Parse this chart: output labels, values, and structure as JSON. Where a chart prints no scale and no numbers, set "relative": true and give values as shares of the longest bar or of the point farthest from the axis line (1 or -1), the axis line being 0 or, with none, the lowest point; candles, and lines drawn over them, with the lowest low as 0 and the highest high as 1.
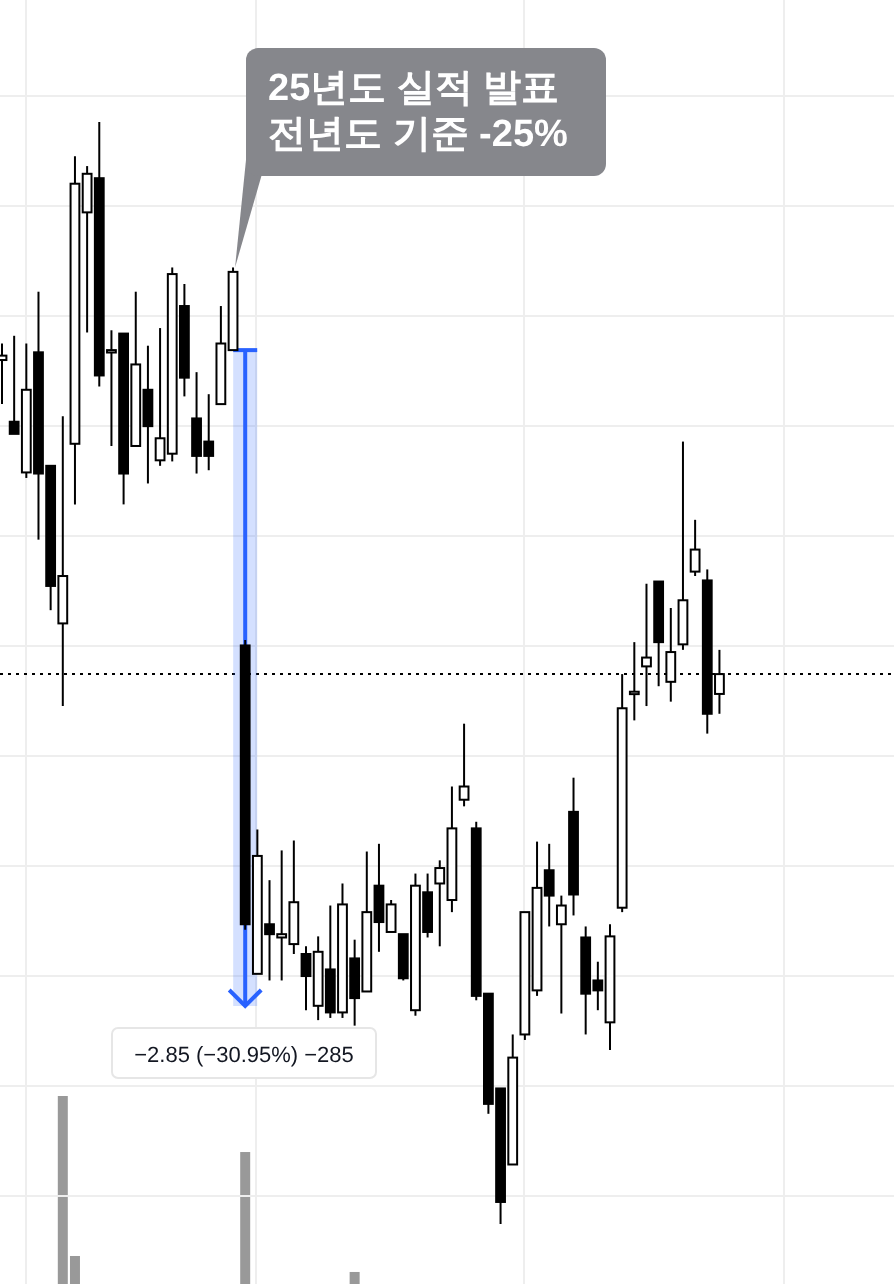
{
  "chart_data": [
    {
      "type": "candlestick",
      "relative": true,
      "grid": true,
      "categories": [
        null,
        null,
        null,
        null,
        null,
        null,
        null,
        null,
        null,
        null,
        null,
        null,
        null,
        null,
        null,
        null,
        null,
        null,
        null,
        null,
        null,
        null,
        null,
        null,
        null,
        null,
        null,
        null,
        null,
        null,
        null,
        null,
        null,
        null,
        null,
        null,
        null,
        null,
        null,
        null,
        null,
        null,
        null,
        null,
        null,
        null,
        null,
        null,
        null,
        null,
        null,
        null,
        null,
        null,
        null,
        null,
        null,
        null,
        null,
        null
      ],
      "ohlc": [
        [
          0.784,
          0.799,
          0.744,
          0.788
        ],
        [
          0.728,
          0.806,
          0.717,
          0.717
        ],
        [
          0.682,
          0.799,
          0.677,
          0.757
        ],
        [
          0.791,
          0.846,
          0.621,
          0.681
        ],
        [
          0.688,
          0.688,
          0.557,
          0.579
        ],
        [
          0.545,
          0.733,
          0.47,
          0.588
        ],
        [
          0.708,
          0.969,
          0.653,
          0.944
        ],
        [
          0.918,
          0.96,
          0.809,
          0.953
        ],
        [
          0.949,
          1.0,
          0.76,
          0.77
        ],
        [
          0.793,
          0.811,
          0.706,
          0.793
        ],
        [
          0.808,
          0.808,
          0.653,
          0.681
        ],
        [
          0.706,
          0.846,
          0.706,
          0.78
        ],
        [
          0.757,
          0.797,
          0.672,
          0.724
        ],
        [
          0.693,
          0.813,
          0.688,
          0.713
        ],
        [
          0.699,
          0.868,
          0.692,
          0.862
        ],
        [
          0.833,
          0.853,
          0.751,
          0.768
        ],
        [
          0.731,
          0.773,
          0.681,
          0.697
        ],
        [
          0.71,
          0.753,
          0.684,
          0.697
        ],
        [
          0.744,
          0.833,
          0.744,
          0.799
        ],
        [
          0.793,
          0.868,
          0.793,
          0.864
        ],
        [
          0.525,
          0.53,
          0.267,
          0.272
        ],
        [
          0.227,
          0.358,
          0.227,
          0.334
        ],
        [
          0.272,
          0.312,
          0.221,
          0.263
        ],
        [
          0.26,
          0.339,
          0.221,
          0.263
        ],
        [
          0.254,
          0.348,
          0.245,
          0.292
        ],
        [
          0.245,
          0.252,
          0.194,
          0.225
        ],
        [
          0.198,
          0.261,
          0.185,
          0.247
        ],
        [
          0.231,
          0.289,
          0.187,
          0.192
        ],
        [
          0.192,
          0.309,
          0.187,
          0.29
        ],
        [
          0.241,
          0.258,
          0.18,
          0.205
        ],
        [
          0.211,
          0.338,
          0.211,
          0.283
        ],
        [
          0.307,
          0.345,
          0.247,
          0.274
        ],
        [
          0.265,
          0.294,
          0.265,
          0.29
        ],
        [
          0.263,
          0.263,
          0.221,
          0.223
        ],
        [
          0.194,
          0.318,
          0.189,
          0.307
        ],
        [
          0.301,
          0.318,
          0.26,
          0.265
        ],
        [
          0.309,
          0.33,
          0.252,
          0.323
        ],
        [
          0.294,
          0.397,
          0.283,
          0.359
        ],
        [
          0.385,
          0.454,
          0.379,
          0.397
        ],
        [
          0.359,
          0.365,
          0.203,
          0.207
        ],
        [
          0.209,
          0.209,
          0.1,
          0.109
        ],
        [
          0.123,
          0.123,
          0.0,
          0.02
        ],
        [
          0.054,
          0.172,
          0.054,
          0.151
        ],
        [
          0.172,
          0.283,
          0.167,
          0.283
        ],
        [
          0.212,
          0.347,
          0.207,
          0.305
        ],
        [
          0.321,
          0.345,
          0.27,
          0.298
        ],
        [
          0.272,
          0.298,
          0.191,
          0.289
        ],
        [
          0.374,
          0.405,
          0.28,
          0.299
        ],
        [
          0.26,
          0.27,
          0.172,
          0.209
        ],
        [
          0.221,
          0.238,
          0.194,
          0.212
        ],
        [
          0.183,
          0.272,
          0.158,
          0.261
        ],
        [
          0.287,
          0.499,
          0.283,
          0.468
        ],
        [
          0.483,
          0.528,
          0.457,
          0.483
        ],
        [
          0.506,
          0.581,
          0.47,
          0.514
        ],
        [
          0.583,
          0.583,
          0.488,
          0.528
        ],
        [
          0.492,
          0.559,
          0.474,
          0.519
        ],
        [
          0.526,
          0.71,
          0.521,
          0.566
        ],
        [
          0.592,
          0.639,
          0.588,
          0.612
        ],
        [
          0.584,
          0.594,
          0.445,
          0.463
        ],
        [
          0.481,
          0.521,
          0.463,
          0.499
        ]
      ],
      "ref_lines": [
        {
          "axis": "y",
          "value": 0.499,
          "line_style": "dotted",
          "color": "#000000"
        }
      ],
      "annotations": [
        "25년도 실적 발표\n전년도 기준 -25%",
        "−2.85 (−30.95%) −285"
      ]
    },
    {
      "type": "bar",
      "relative": true,
      "color": "#999999",
      "categories": [
        null,
        null,
        null,
        null,
        null,
        null,
        null,
        null,
        null,
        null,
        null,
        null,
        null,
        null,
        null,
        null,
        null,
        null,
        null,
        null,
        null,
        null,
        null,
        null,
        null,
        null,
        null,
        null,
        null,
        null,
        null,
        null,
        null,
        null,
        null,
        null,
        null,
        null,
        null,
        null,
        null,
        null,
        null,
        null,
        null,
        null,
        null,
        null,
        null,
        null,
        null,
        null,
        null,
        null,
        null,
        null,
        null,
        null,
        null,
        null
      ],
      "values": [
        null,
        null,
        null,
        null,
        null,
        1,
        0.149,
        null,
        null,
        null,
        null,
        null,
        null,
        null,
        null,
        null,
        null,
        null,
        null,
        null,
        0.702,
        null,
        null,
        null,
        null,
        null,
        null,
        null,
        null,
        0.064,
        null,
        null,
        null,
        null,
        null,
        null,
        null,
        null,
        null,
        null,
        null,
        null,
        null,
        null,
        null,
        null,
        null,
        null,
        null,
        null,
        null,
        null,
        null,
        null,
        null,
        null,
        null,
        null,
        null,
        null
      ]
    }
  ]
}
